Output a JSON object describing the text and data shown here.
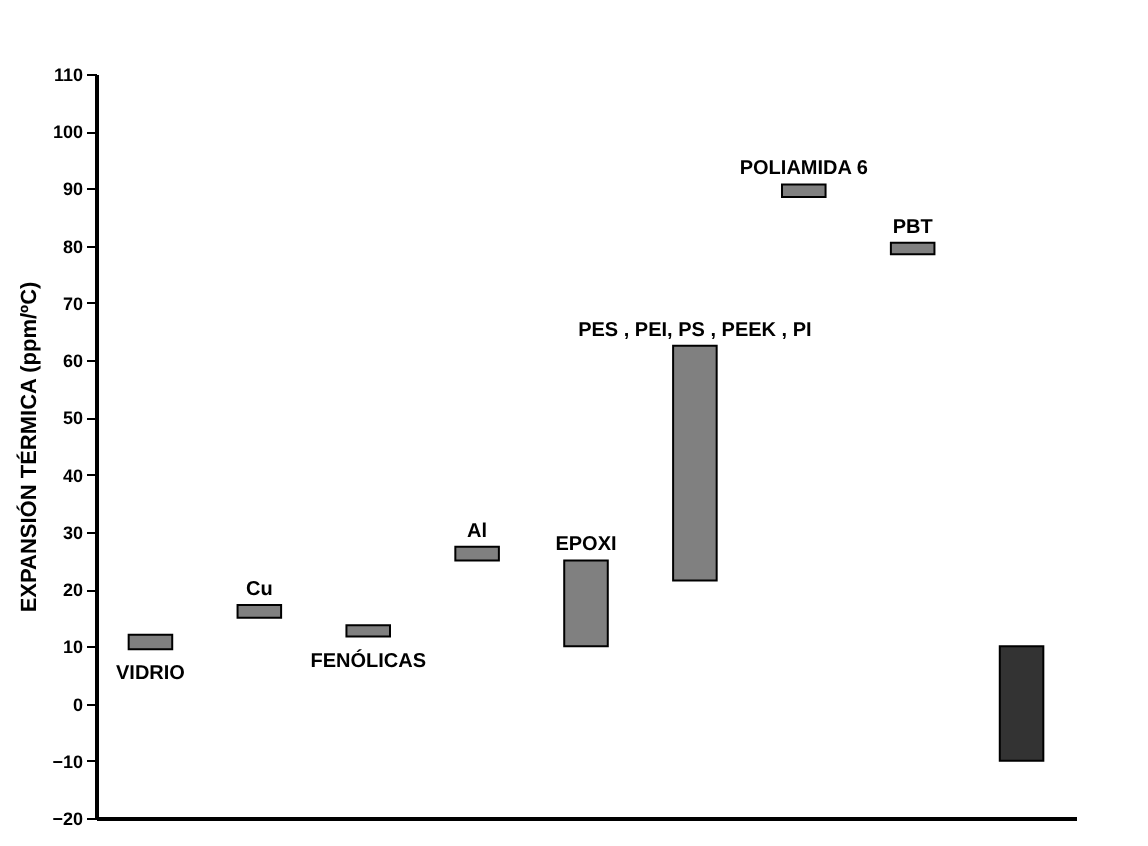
{
  "chart_data": {
    "type": "bar",
    "ylabel": "EXPANSIÓN TÉRMICA (ppm/ºC)",
    "categories": [
      "VIDRIO",
      "Cu",
      "FENÓLICAS",
      "Al",
      "EPOXI",
      "PES , PEI, PS , PEEK , PI",
      "POLIAMIDA 6",
      "PBT",
      null
    ],
    "base": [
      9.5,
      15,
      11.7,
      25,
      10,
      21.5,
      88.5,
      78.5,
      -10
    ],
    "values": [
      2.5,
      2.2,
      2,
      2.4,
      15,
      41,
      2.2,
      2,
      20
    ],
    "colors": [
      "#808080",
      "#808080",
      "#808080",
      "#808080",
      "#808080",
      "#808080",
      "#808080",
      "#808080",
      "#333333"
    ],
    "ylim": [
      -20,
      110
    ],
    "yticks": [
      -20,
      -10,
      0,
      10,
      20,
      30,
      40,
      50,
      60,
      70,
      80,
      90,
      100,
      110
    ],
    "tick_labels": "y",
    "grid": false
  }
}
